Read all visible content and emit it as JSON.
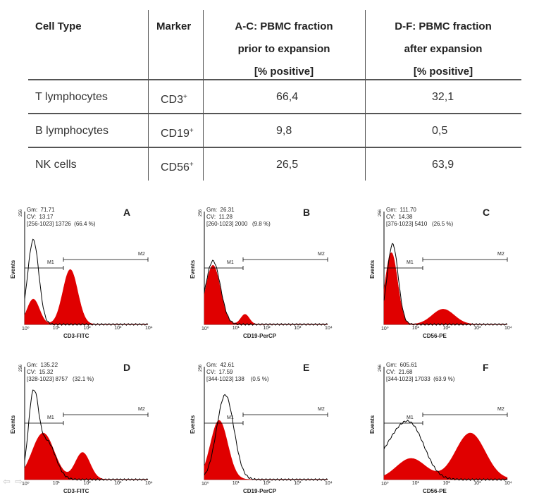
{
  "table": {
    "headers": {
      "cell_type": "Cell Type",
      "marker": "Marker",
      "ac_line1": "A-C: PBMC fraction",
      "ac_line2": "prior to expansion",
      "ac_line3": "[% positive]",
      "df_line1": "D-F: PBMC fraction",
      "df_line2": "after expansion",
      "df_line3": "[% positive]"
    },
    "rows": [
      {
        "cell_type": "T lymphocytes",
        "marker": "CD3",
        "marker_sup": "+",
        "prior": "66,4",
        "after": "32,1"
      },
      {
        "cell_type": "B lymphocytes",
        "marker": "CD19",
        "marker_sup": "+",
        "prior": "9,8",
        "after": "0,5"
      },
      {
        "cell_type": "NK cells",
        "marker": "CD56",
        "marker_sup": "+",
        "prior": "26,5",
        "after": "63,9"
      }
    ]
  },
  "chart_data": [
    {
      "type": "area",
      "panel": "A",
      "xlabel": "CD3-FITC",
      "ylabel": "Events",
      "ymax_label": "256",
      "stats": [
        "Gm:  71.71",
        "CV:  13.17",
        "[256-1023] 13726  (66.4 %)"
      ],
      "markers": [
        "M1",
        "M2"
      ],
      "x_scale": "log",
      "xlim": [
        1,
        10000
      ],
      "xticks": [
        "10⁰",
        "10¹",
        "10²",
        "10³",
        "10⁴"
      ]
    },
    {
      "type": "area",
      "panel": "B",
      "xlabel": "CD19-PerCP",
      "ylabel": "Events",
      "ymax_label": "256",
      "stats": [
        "Gm:  26.31",
        "CV:  11.28",
        "[260-1023] 2000   (9.8 %)"
      ],
      "markers": [
        "M1",
        "M2"
      ],
      "x_scale": "log",
      "xlim": [
        1,
        10000
      ],
      "xticks": [
        "10⁰",
        "10¹",
        "10²",
        "10³",
        "10⁴"
      ]
    },
    {
      "type": "area",
      "panel": "C",
      "xlabel": "CD56-PE",
      "ylabel": "Events",
      "ymax_label": "256",
      "stats": [
        "Gm:  111.70",
        "CV:  14.38",
        "[376-1023] 5410   (26.5 %)"
      ],
      "markers": [
        "M1",
        "M2"
      ],
      "x_scale": "log",
      "xlim": [
        1,
        10000
      ],
      "xticks": [
        "10⁰",
        "10¹",
        "10²",
        "10³",
        "10⁴"
      ]
    },
    {
      "type": "area",
      "panel": "D",
      "xlabel": "CD3-FITC",
      "ylabel": "Events",
      "ymax_label": "256",
      "stats": [
        "Gm:  135.22",
        "CV:  15.32",
        "[328-1023] 8757   (32.1 %)"
      ],
      "markers": [
        "M1",
        "M2"
      ],
      "x_scale": "log",
      "xlim": [
        1,
        10000
      ],
      "xticks": [
        "10⁰",
        "10¹",
        "10²",
        "10³",
        "10⁴"
      ]
    },
    {
      "type": "area",
      "panel": "E",
      "xlabel": "CD19-PerCP",
      "ylabel": "Events",
      "ymax_label": "256",
      "stats": [
        "Gm:  42.61",
        "CV:  17.59",
        "[344-1023] 138    (0.5 %)"
      ],
      "markers": [
        "M1",
        "M2"
      ],
      "x_scale": "log",
      "xlim": [
        1,
        10000
      ],
      "xticks": [
        "10⁰",
        "10¹",
        "10²",
        "10³",
        "10⁴"
      ]
    },
    {
      "type": "area",
      "panel": "F",
      "xlabel": "CD56-PE",
      "ylabel": "Events",
      "ymax_label": "256",
      "stats": [
        "Gm:  605.61",
        "CV:  21.68",
        "[344-1023] 17033  (63.9 %)"
      ],
      "markers": [
        "M1",
        "M2"
      ],
      "x_scale": "log",
      "xlim": [
        1,
        10000
      ],
      "xticks": [
        "10⁰",
        "10¹",
        "10²",
        "10³",
        "10⁴"
      ]
    }
  ],
  "colors": {
    "fill": "#e00000",
    "line": "#000000",
    "text": "#222222",
    "rule": "#555555"
  }
}
